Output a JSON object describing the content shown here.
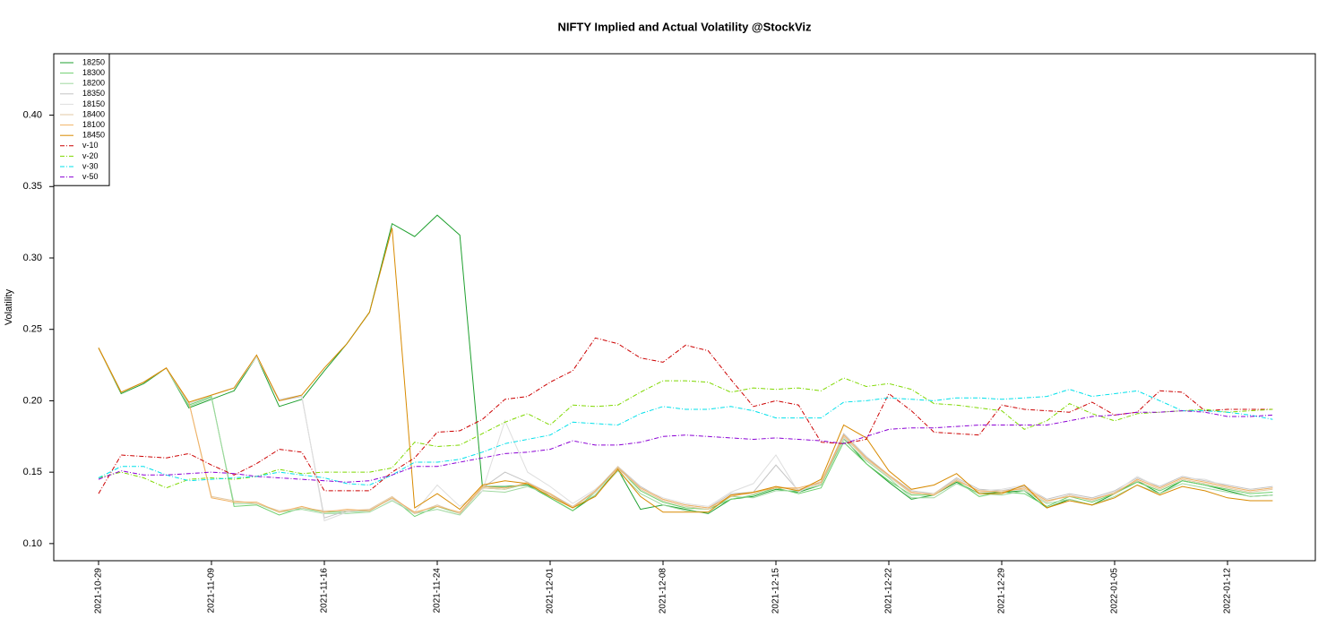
{
  "chart_data": {
    "type": "line",
    "title": "NIFTY Implied and Actual Volatility @StockViz",
    "y_label": "Volatility",
    "categories": [
      "2021-10-29",
      null,
      null,
      null,
      null,
      "2021-11-09",
      null,
      null,
      null,
      null,
      "2021-11-16",
      null,
      null,
      null,
      null,
      "2021-11-24",
      null,
      null,
      null,
      null,
      "2021-12-01",
      null,
      null,
      null,
      null,
      "2021-12-08",
      null,
      null,
      null,
      null,
      "2021-12-15",
      null,
      null,
      null,
      null,
      "2021-12-22",
      null,
      null,
      null,
      null,
      "2021-12-29",
      null,
      null,
      null,
      null,
      "2022-01-05",
      null,
      null,
      null,
      null,
      "2022-01-12",
      null,
      null
    ],
    "ylim": [
      0.088,
      0.443
    ],
    "yticks": [
      {
        "value": 0.1,
        "label": "0.10"
      },
      0.15,
      {
        "value": 0.2,
        "label": "0.20"
      },
      0.25,
      {
        "value": 0.3,
        "label": "0.30"
      },
      0.35,
      {
        "value": 0.4,
        "label": "0.40"
      }
    ],
    "legend": "top-left",
    "series": [
      {
        "name": "18250",
        "color": "#1fa02f",
        "linestyle": "solid",
        "values": [
          0.237,
          0.205,
          0.212,
          0.223,
          0.195,
          0.201,
          0.207,
          0.231,
          0.196,
          0.201,
          0.221,
          0.24,
          0.262,
          0.324,
          0.315,
          0.33,
          0.316,
          0.14,
          0.14,
          0.141,
          0.132,
          0.123,
          0.134,
          0.152,
          0.124,
          0.127,
          0.124,
          0.121,
          0.131,
          0.133,
          0.138,
          0.136,
          0.141,
          0.174,
          0.156,
          0.143,
          0.131,
          0.134,
          0.143,
          0.135,
          0.136,
          0.137,
          0.125,
          0.131,
          0.127,
          0.135,
          0.144,
          0.135,
          0.144,
          0.141,
          0.137,
          0.133,
          0.134
        ]
      },
      {
        "name": "18300",
        "color": "#6fd06f",
        "linestyle": "solid",
        "values": [
          0.237,
          0.206,
          0.213,
          0.223,
          0.197,
          0.203,
          0.126,
          0.127,
          0.12,
          0.125,
          0.122,
          0.122,
          0.123,
          0.132,
          0.119,
          0.126,
          0.121,
          0.139,
          0.138,
          0.142,
          0.132,
          0.123,
          0.136,
          0.153,
          0.137,
          0.129,
          0.125,
          0.124,
          0.131,
          0.134,
          0.139,
          0.135,
          0.139,
          0.171,
          0.156,
          0.144,
          0.134,
          0.134,
          0.144,
          0.133,
          0.136,
          0.135,
          0.126,
          0.133,
          0.129,
          0.135,
          0.143,
          0.137,
          0.144,
          0.141,
          0.138,
          0.135,
          0.136
        ]
      },
      {
        "name": "18200",
        "color": "#9fd8a0",
        "linestyle": "solid",
        "values": [
          0.237,
          0.206,
          0.213,
          0.223,
          0.196,
          0.202,
          0.128,
          0.128,
          0.122,
          0.124,
          0.121,
          0.121,
          0.122,
          0.13,
          0.121,
          0.124,
          0.12,
          0.137,
          0.136,
          0.14,
          0.134,
          0.125,
          0.134,
          0.151,
          0.135,
          0.127,
          0.123,
          0.122,
          0.133,
          0.132,
          0.137,
          0.137,
          0.141,
          0.173,
          0.158,
          0.146,
          0.132,
          0.132,
          0.142,
          0.135,
          0.134,
          0.137,
          0.128,
          0.131,
          0.127,
          0.133,
          0.141,
          0.135,
          0.142,
          0.139,
          0.136,
          0.133,
          0.134
        ]
      },
      {
        "name": "18350",
        "color": "#c4c4c4",
        "linestyle": "solid",
        "values": [
          0.237,
          0.206,
          0.213,
          0.223,
          0.198,
          0.204,
          0.209,
          0.231,
          0.2,
          0.203,
          0.118,
          0.123,
          0.123,
          0.132,
          0.121,
          0.127,
          0.121,
          0.139,
          0.15,
          0.143,
          0.135,
          0.126,
          0.137,
          0.154,
          0.14,
          0.131,
          0.127,
          0.125,
          0.135,
          0.136,
          0.155,
          0.137,
          0.143,
          0.177,
          0.161,
          0.148,
          0.137,
          0.135,
          0.146,
          0.138,
          0.137,
          0.14,
          0.131,
          0.135,
          0.132,
          0.137,
          0.146,
          0.14,
          0.147,
          0.144,
          0.141,
          0.138,
          0.14
        ]
      },
      {
        "name": "18150",
        "color": "#dedede",
        "linestyle": "solid",
        "values": [
          0.237,
          0.206,
          0.213,
          0.223,
          0.198,
          0.204,
          0.209,
          0.231,
          0.201,
          0.204,
          0.116,
          0.122,
          0.124,
          0.131,
          0.122,
          0.141,
          0.126,
          0.137,
          0.186,
          0.15,
          0.14,
          0.128,
          0.138,
          0.152,
          0.139,
          0.132,
          0.128,
          0.126,
          0.136,
          0.142,
          0.162,
          0.136,
          0.144,
          0.174,
          0.16,
          0.147,
          0.136,
          0.134,
          0.145,
          0.137,
          0.138,
          0.141,
          0.13,
          0.134,
          0.131,
          0.136,
          0.147,
          0.139,
          0.146,
          0.145,
          0.14,
          0.137,
          0.139
        ]
      },
      {
        "name": "18400",
        "color": "#e3c9a4",
        "linestyle": "solid",
        "values": [
          0.237,
          0.206,
          0.213,
          0.223,
          0.199,
          0.133,
          0.13,
          0.128,
          0.123,
          0.125,
          0.123,
          0.123,
          0.124,
          0.133,
          0.121,
          0.127,
          0.121,
          0.139,
          0.138,
          0.143,
          0.134,
          0.126,
          0.136,
          0.154,
          0.138,
          0.13,
          0.126,
          0.124,
          0.134,
          0.135,
          0.14,
          0.138,
          0.142,
          0.175,
          0.159,
          0.147,
          0.135,
          0.135,
          0.145,
          0.136,
          0.137,
          0.138,
          0.129,
          0.134,
          0.13,
          0.136,
          0.144,
          0.138,
          0.145,
          0.142,
          0.139,
          0.136,
          0.138
        ]
      },
      {
        "name": "18100",
        "color": "#f0b265",
        "linestyle": "solid",
        "values": [
          0.237,
          0.206,
          0.213,
          0.223,
          0.199,
          0.132,
          0.129,
          0.129,
          0.122,
          0.126,
          0.122,
          0.124,
          0.123,
          0.132,
          0.122,
          0.126,
          0.122,
          0.14,
          0.139,
          0.142,
          0.135,
          0.125,
          0.137,
          0.153,
          0.139,
          0.131,
          0.127,
          0.125,
          0.133,
          0.136,
          0.139,
          0.139,
          0.143,
          0.176,
          0.16,
          0.148,
          0.136,
          0.134,
          0.144,
          0.137,
          0.136,
          0.139,
          0.13,
          0.133,
          0.131,
          0.135,
          0.145,
          0.139,
          0.146,
          0.143,
          0.14,
          0.137,
          0.139
        ]
      },
      {
        "name": "18450",
        "color": "#d88a00",
        "linestyle": "solid",
        "values": [
          0.237,
          0.206,
          0.213,
          0.223,
          0.199,
          0.204,
          0.209,
          0.232,
          0.2,
          0.204,
          0.223,
          0.24,
          0.262,
          0.321,
          0.125,
          0.135,
          0.124,
          0.141,
          0.144,
          0.142,
          0.133,
          0.125,
          0.133,
          0.152,
          0.133,
          0.122,
          0.122,
          0.122,
          0.134,
          0.136,
          0.14,
          0.137,
          0.145,
          0.183,
          0.174,
          0.151,
          0.138,
          0.141,
          0.149,
          0.135,
          0.135,
          0.141,
          0.125,
          0.13,
          0.127,
          0.132,
          0.141,
          0.134,
          0.14,
          0.137,
          0.132,
          0.13,
          0.13
        ]
      },
      {
        "name": "v-10",
        "color": "#cc0000",
        "linestyle": "dashdot",
        "values": [
          0.135,
          0.162,
          0.161,
          0.16,
          0.163,
          0.155,
          0.148,
          0.156,
          0.166,
          0.164,
          0.137,
          0.137,
          0.137,
          0.15,
          0.16,
          0.178,
          0.179,
          0.187,
          0.201,
          0.203,
          0.213,
          0.221,
          0.244,
          0.24,
          0.23,
          0.227,
          0.239,
          0.235,
          0.215,
          0.196,
          0.2,
          0.197,
          0.171,
          0.17,
          0.173,
          0.205,
          0.193,
          0.178,
          0.177,
          0.176,
          0.197,
          0.194,
          0.193,
          0.192,
          0.199,
          0.19,
          0.192,
          0.207,
          0.206,
          0.193,
          0.194,
          0.194,
          0.194
        ]
      },
      {
        "name": "v-20",
        "color": "#7fd800",
        "linestyle": "dashdot",
        "values": [
          0.146,
          0.15,
          0.146,
          0.139,
          0.145,
          0.146,
          0.145,
          0.147,
          0.152,
          0.149,
          0.15,
          0.15,
          0.15,
          0.153,
          0.171,
          0.168,
          0.169,
          0.177,
          0.185,
          0.191,
          0.183,
          0.197,
          0.196,
          0.197,
          0.206,
          0.214,
          0.214,
          0.213,
          0.206,
          0.209,
          0.208,
          0.209,
          0.207,
          0.216,
          0.21,
          0.212,
          0.208,
          0.198,
          0.197,
          0.195,
          0.193,
          0.18,
          0.186,
          0.198,
          0.191,
          0.186,
          0.191,
          0.192,
          0.193,
          0.194,
          0.192,
          0.193,
          0.194
        ]
      },
      {
        "name": "v-30",
        "color": "#00e0ea",
        "linestyle": "dashdot",
        "values": [
          0.146,
          0.154,
          0.154,
          0.148,
          0.144,
          0.145,
          0.146,
          0.147,
          0.15,
          0.148,
          0.146,
          0.142,
          0.141,
          0.148,
          0.157,
          0.157,
          0.159,
          0.164,
          0.17,
          0.173,
          0.176,
          0.185,
          0.184,
          0.183,
          0.191,
          0.196,
          0.194,
          0.194,
          0.196,
          0.193,
          0.188,
          0.188,
          0.188,
          0.199,
          0.2,
          0.202,
          0.201,
          0.2,
          0.202,
          0.202,
          0.201,
          0.202,
          0.203,
          0.208,
          0.203,
          0.205,
          0.207,
          0.2,
          0.193,
          0.193,
          0.192,
          0.19,
          0.187
        ]
      },
      {
        "name": "v-50",
        "color": "#8a00d4",
        "linestyle": "dashdot",
        "values": [
          0.145,
          0.151,
          0.148,
          0.148,
          0.149,
          0.15,
          0.149,
          0.147,
          0.146,
          0.145,
          0.144,
          0.143,
          0.144,
          0.148,
          0.154,
          0.154,
          0.157,
          0.16,
          0.163,
          0.164,
          0.166,
          0.172,
          0.169,
          0.169,
          0.171,
          0.175,
          0.176,
          0.175,
          0.174,
          0.173,
          0.174,
          0.173,
          0.172,
          0.17,
          0.175,
          0.18,
          0.181,
          0.181,
          0.182,
          0.183,
          0.183,
          0.183,
          0.183,
          0.186,
          0.189,
          0.19,
          0.192,
          0.192,
          0.193,
          0.192,
          0.189,
          0.189,
          0.19
        ]
      }
    ]
  }
}
